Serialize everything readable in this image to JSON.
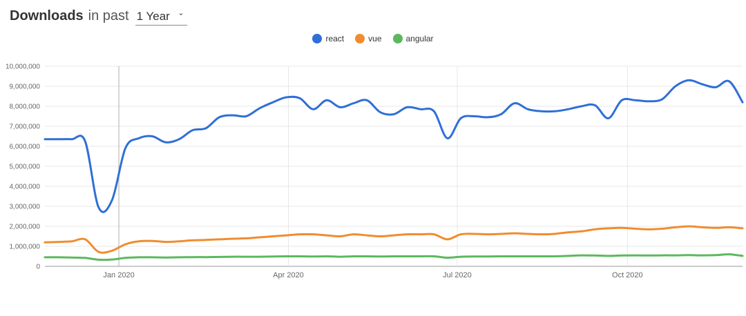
{
  "header": {
    "title": "Downloads",
    "subtitle": "in past",
    "range": {
      "value": "1 Year",
      "options": [
        "1 Year"
      ]
    }
  },
  "legend": [
    {
      "name": "react",
      "color": "#2f6fd6"
    },
    {
      "name": "vue",
      "color": "#f08c2f"
    },
    {
      "name": "angular",
      "color": "#5cb85c"
    }
  ],
  "chart_data": {
    "type": "line",
    "title": "Downloads in past 1 Year",
    "grid": true,
    "legend_position": "top-center",
    "x_axis": {
      "unit": "weekly samples, ~Nov 2019 to Dec 2020",
      "tick_labels": [
        {
          "label": "Jan 2020",
          "pos": 0.106,
          "emphasis": true
        },
        {
          "label": "Apr 2020",
          "pos": 0.349,
          "emphasis": false
        },
        {
          "label": "Jul 2020",
          "pos": 0.591,
          "emphasis": false
        },
        {
          "label": "Oct 2020",
          "pos": 0.835,
          "emphasis": false
        }
      ]
    },
    "y_axis": {
      "min": 0,
      "max": 10000000,
      "tick_step": 1000000
    },
    "series": [
      {
        "name": "react",
        "color": "#2f6fd6",
        "values": [
          6350000,
          6350000,
          6350000,
          6250000,
          2950000,
          3300000,
          5900000,
          6400000,
          6500000,
          6200000,
          6350000,
          6800000,
          6900000,
          7450000,
          7550000,
          7500000,
          7900000,
          8200000,
          8450000,
          8400000,
          7850000,
          8300000,
          7950000,
          8150000,
          8300000,
          7700000,
          7600000,
          7950000,
          7850000,
          7750000,
          6400000,
          7400000,
          7500000,
          7450000,
          7600000,
          8150000,
          7850000,
          7750000,
          7750000,
          7850000,
          8000000,
          8050000,
          7400000,
          8300000,
          8300000,
          8250000,
          8350000,
          9000000,
          9300000,
          9100000,
          8950000,
          9250000,
          8200000
        ]
      },
      {
        "name": "vue",
        "color": "#f08c2f",
        "values": [
          1200000,
          1220000,
          1250000,
          1350000,
          720000,
          780000,
          1100000,
          1250000,
          1270000,
          1220000,
          1250000,
          1300000,
          1320000,
          1350000,
          1380000,
          1400000,
          1450000,
          1500000,
          1550000,
          1600000,
          1600000,
          1550000,
          1500000,
          1600000,
          1550000,
          1500000,
          1550000,
          1600000,
          1600000,
          1600000,
          1350000,
          1600000,
          1620000,
          1600000,
          1620000,
          1650000,
          1620000,
          1600000,
          1620000,
          1700000,
          1750000,
          1850000,
          1900000,
          1920000,
          1880000,
          1850000,
          1880000,
          1950000,
          2000000,
          1950000,
          1920000,
          1950000,
          1900000
        ]
      },
      {
        "name": "angular",
        "color": "#5cb85c",
        "values": [
          450000,
          450000,
          440000,
          420000,
          330000,
          340000,
          420000,
          450000,
          450000,
          440000,
          450000,
          460000,
          460000,
          470000,
          480000,
          480000,
          480000,
          490000,
          500000,
          500000,
          490000,
          500000,
          480000,
          500000,
          500000,
          490000,
          500000,
          500000,
          500000,
          500000,
          430000,
          480000,
          490000,
          490000,
          500000,
          500000,
          500000,
          500000,
          500000,
          520000,
          550000,
          540000,
          520000,
          540000,
          550000,
          540000,
          550000,
          550000,
          560000,
          550000,
          560000,
          600000,
          520000
        ]
      }
    ]
  }
}
